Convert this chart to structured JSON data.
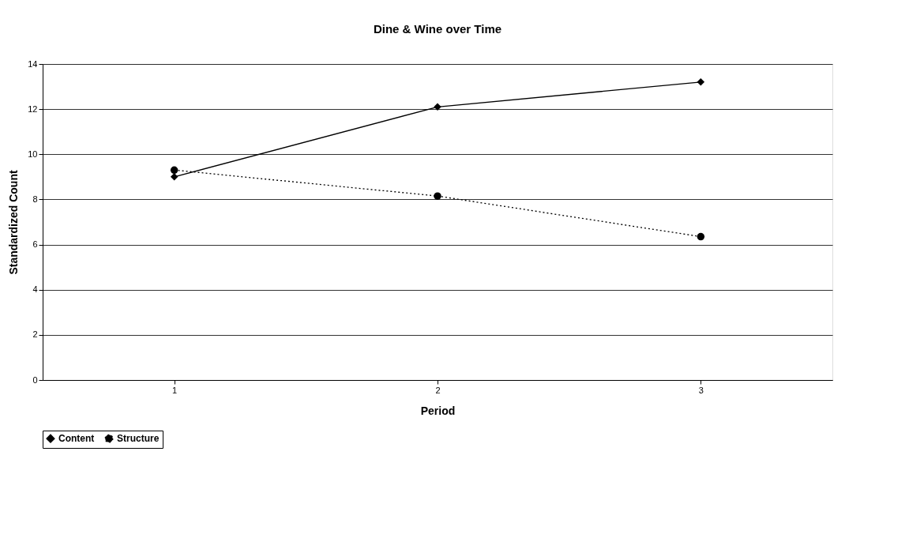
{
  "chart_data": {
    "type": "line",
    "title": "Dine & Wine over Time",
    "xlabel": "Period",
    "ylabel": "Standardized Count",
    "categories": [
      "1",
      "2",
      "3"
    ],
    "series": [
      {
        "name": "Content",
        "color": "#000000",
        "values": [
          9.0,
          12.1,
          13.2
        ],
        "marker": "diamond",
        "line_style": "solid"
      },
      {
        "name": "Structure",
        "color": "#000000",
        "values": [
          9.3,
          8.15,
          6.35
        ],
        "marker": "circle",
        "line_style": "dotted"
      }
    ],
    "ylim": [
      0,
      14
    ],
    "yticks": [
      0,
      2,
      4,
      6,
      8,
      10,
      12,
      14
    ],
    "grid": "y",
    "legend": "bottom"
  }
}
